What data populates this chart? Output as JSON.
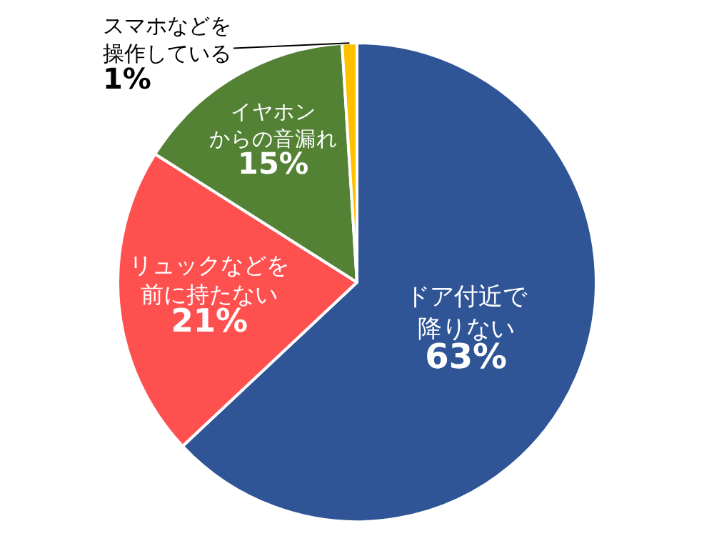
{
  "chart_data": {
    "type": "pie",
    "categories": [
      "ドア付近で降りない",
      "リュックなどを前に持たない",
      "イヤホンからの音漏れ",
      "スマホなどを操作している"
    ],
    "values": [
      63,
      21,
      15,
      1
    ],
    "value_labels": [
      "63%",
      "21%",
      "15%",
      "1%"
    ],
    "colors": [
      "#2f5597",
      "#ff5050",
      "#548235",
      "#ffc000"
    ],
    "legend": false
  }
}
